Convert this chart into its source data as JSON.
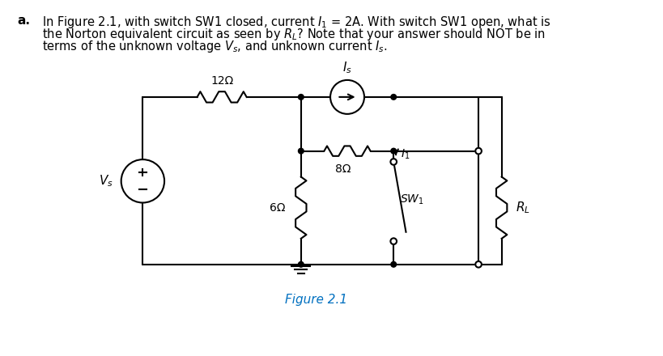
{
  "title_text": "Figure 2.1",
  "title_color": "#0070C0",
  "q_a_label": "a.",
  "q_line1": "In Figure 2.1, with switch SW1 closed, current $I_1$ = 2A. With switch SW1 open, what is",
  "q_line2": "the Norton equivalent circuit as seen by $R_L$? Note that your answer should NOT be in",
  "q_line3": "terms of the unknown voltage $V_s$, and unknown current $I_s$.",
  "label_12ohm": "12Ω",
  "label_Is": "$I_s$",
  "label_8ohm": "8Ω",
  "label_I1": "$I_1$",
  "label_6ohm": "6Ω",
  "label_SW1": "$SW_1$",
  "label_Vs": "$V_s$",
  "label_RL": "$R_L$",
  "bg_color": "#ffffff",
  "line_color": "#000000",
  "lw": 1.5
}
